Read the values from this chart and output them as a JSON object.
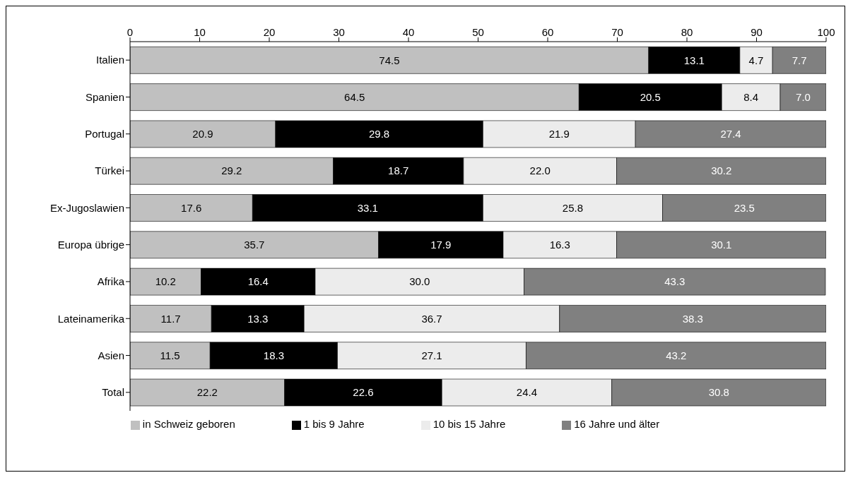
{
  "chart_data": {
    "type": "bar",
    "orientation": "horizontal",
    "stacked": true,
    "categories": [
      "Italien",
      "Spanien",
      "Portugal",
      "Türkei",
      "Ex-Jugoslawien",
      "Europa übrige",
      "Afrika",
      "Lateinamerika",
      "Asien",
      "Total"
    ],
    "series": [
      {
        "name": "in Schweiz geboren",
        "color": "#c0c0c0",
        "values": [
          74.5,
          64.5,
          20.9,
          29.2,
          17.6,
          35.7,
          10.2,
          11.7,
          11.5,
          22.2
        ],
        "value_labels": [
          "74.5",
          "64.5",
          "20.9",
          "29.2",
          "17.6",
          "35.7",
          "10.2",
          "11.7",
          "11.5",
          "22.2"
        ]
      },
      {
        "name": "1 bis 9 Jahre",
        "color": "#000000",
        "values": [
          13.1,
          20.5,
          29.8,
          18.7,
          33.1,
          17.9,
          16.4,
          13.3,
          18.3,
          22.6
        ],
        "value_labels": [
          "13.1",
          "20.5",
          "29.8",
          "18.7",
          "33.1",
          "17.9",
          "16.4",
          "13.3",
          "18.3",
          "22.6"
        ]
      },
      {
        "name": "10 bis 15 Jahre",
        "color": "#ececec",
        "values": [
          4.7,
          8.4,
          21.9,
          22.0,
          25.8,
          16.3,
          30.0,
          36.7,
          27.1,
          24.4
        ],
        "value_labels": [
          "4.7",
          "8.4",
          "21.9",
          "22.0",
          "25.8",
          "16.3",
          "30.0",
          "36.7",
          "27.1",
          "24.4"
        ]
      },
      {
        "name": "16 Jahre und älter",
        "color": "#808080",
        "values": [
          7.7,
          7.0,
          27.4,
          30.2,
          23.5,
          30.1,
          43.3,
          38.3,
          43.2,
          30.8
        ],
        "value_labels": [
          "7.7",
          "7.0",
          "27.4",
          "30.2",
          "23.5",
          "30.1",
          "43.3",
          "38.3",
          "43.2",
          "30.8"
        ]
      }
    ],
    "xlim": [
      0,
      100
    ],
    "xticks": [
      0,
      10,
      20,
      30,
      40,
      50,
      60,
      70,
      80,
      90,
      100
    ],
    "grid": false,
    "legend": "bottom"
  }
}
